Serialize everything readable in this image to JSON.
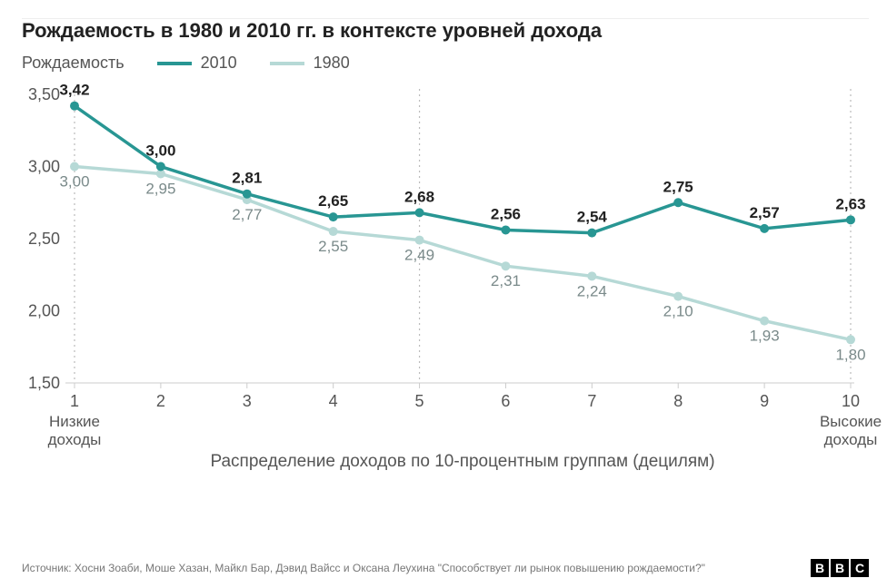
{
  "title": "Рождаемость в 1980 и 2010 гг. в контексте уровней дохода",
  "y_axis_label": "Рождаемость",
  "legend": {
    "series1": {
      "label": "2010",
      "color": "#289693",
      "width": 4
    },
    "series2": {
      "label": "1980",
      "color": "#b6d9d6",
      "width": 4
    }
  },
  "chart": {
    "type": "line",
    "categories": [
      "1",
      "2",
      "3",
      "4",
      "5",
      "6",
      "7",
      "8",
      "9",
      "10"
    ],
    "x_sublabel_low": "Низкие\nдоходы",
    "x_sublabel_high": "Высокие\nдоходы",
    "x_title": "Распределение доходов по 10-процентным группам (децилям)",
    "ylim": [
      1.5,
      3.5
    ],
    "yticks": [
      "1,50",
      "2,00",
      "2,50",
      "3,00",
      "3,50"
    ],
    "ytick_vals": [
      1.5,
      2.0,
      2.5,
      3.0,
      3.5
    ],
    "vgrid_at": [
      1,
      5,
      10
    ],
    "grid_color": "#bbbbbb",
    "axis_color": "#cccccc",
    "background_color": "#ffffff",
    "series_2010": {
      "color": "#289693",
      "line_width": 3.5,
      "marker_radius": 5,
      "values": [
        3.42,
        3.0,
        2.81,
        2.65,
        2.68,
        2.56,
        2.54,
        2.75,
        2.57,
        2.63
      ],
      "labels": [
        "3,42",
        "3,00",
        "2,81",
        "2,65",
        "2,68",
        "2,56",
        "2,54",
        "2,75",
        "2,57",
        "2,63"
      ]
    },
    "series_1980": {
      "color": "#b6d9d6",
      "line_width": 3.5,
      "marker_radius": 5,
      "values": [
        3.0,
        2.95,
        2.77,
        2.55,
        2.49,
        2.31,
        2.24,
        2.1,
        1.93,
        1.8
      ],
      "labels": [
        "3,00",
        "2,95",
        "2,77",
        "2,55",
        "2,49",
        "2,31",
        "2,24",
        "2,10",
        "1,93",
        "1,80"
      ]
    }
  },
  "source": "Источник: Хосни Зоаби, Моше Хазан, Майкл Бар, Дэвид Вайсс и Оксана Леухина \"Способствует ли рынок повышению рождаемости?\"",
  "brand": {
    "letters": [
      "B",
      "B",
      "C"
    ]
  }
}
